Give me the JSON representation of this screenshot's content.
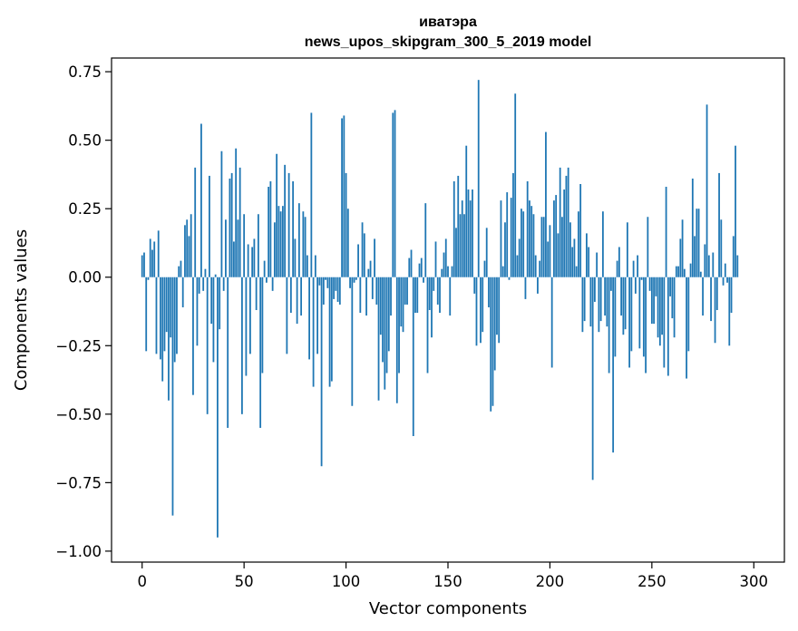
{
  "chart_data": {
    "type": "bar",
    "title": "иватэра",
    "subtitle": "news_upos_skipgram_300_5_2019 model",
    "xlabel": "Vector components",
    "ylabel": "Components values",
    "xlim": [
      -15,
      315
    ],
    "ylim": [
      -1.04,
      0.8
    ],
    "xticks": [
      0,
      50,
      100,
      150,
      200,
      250,
      300
    ],
    "yticks": [
      0.75,
      0.5,
      0.25,
      0.0,
      -0.25,
      -0.5,
      -0.75,
      -1.0
    ],
    "ytick_labels": [
      "0.75",
      "0.50",
      "0.25",
      "0.00",
      "−0.25",
      "−0.50",
      "−0.75",
      "−1.00"
    ],
    "bar_color": "#1f77b4",
    "grid": false,
    "values": [
      0.08,
      0.09,
      -0.27,
      -0.01,
      0.14,
      0.1,
      0.13,
      -0.28,
      0.17,
      -0.3,
      -0.38,
      -0.27,
      -0.2,
      -0.45,
      -0.22,
      -0.87,
      -0.31,
      -0.28,
      0.04,
      0.06,
      -0.11,
      0.19,
      0.21,
      0.15,
      0.23,
      -0.43,
      0.4,
      -0.25,
      -0.06,
      0.56,
      -0.05,
      0.03,
      -0.5,
      0.37,
      -0.17,
      -0.31,
      0.01,
      -0.95,
      -0.19,
      0.46,
      -0.05,
      0.21,
      -0.55,
      0.36,
      0.38,
      0.13,
      0.47,
      0.21,
      0.4,
      -0.5,
      0.23,
      -0.36,
      0.12,
      -0.28,
      0.11,
      0.14,
      -0.12,
      0.23,
      -0.55,
      -0.35,
      0.06,
      -0.02,
      0.33,
      0.35,
      -0.05,
      0.2,
      0.45,
      0.26,
      0.24,
      0.26,
      0.41,
      -0.28,
      0.38,
      -0.13,
      0.35,
      0.14,
      -0.17,
      0.27,
      -0.14,
      0.24,
      0.22,
      0.08,
      -0.3,
      0.6,
      -0.4,
      0.08,
      -0.28,
      -0.03,
      -0.69,
      -0.1,
      -0.01,
      -0.04,
      -0.4,
      -0.38,
      -0.08,
      -0.05,
      -0.09,
      -0.1,
      0.58,
      0.59,
      0.38,
      0.25,
      -0.04,
      -0.47,
      -0.02,
      -0.01,
      0.12,
      -0.13,
      0.2,
      0.16,
      -0.14,
      0.03,
      0.06,
      -0.08,
      0.14,
      -0.1,
      -0.45,
      -0.21,
      -0.31,
      -0.41,
      -0.35,
      -0.27,
      -0.14,
      0.6,
      0.61,
      -0.46,
      -0.35,
      -0.18,
      -0.2,
      -0.1,
      -0.1,
      0.07,
      0.1,
      -0.58,
      -0.13,
      -0.13,
      0.05,
      0.07,
      -0.02,
      0.27,
      -0.35,
      -0.12,
      -0.22,
      -0.05,
      0.13,
      -0.1,
      -0.13,
      0.03,
      0.09,
      0.14,
      0.04,
      -0.14,
      0.04,
      0.35,
      0.18,
      0.37,
      0.23,
      0.28,
      0.23,
      0.48,
      0.32,
      0.28,
      0.32,
      -0.06,
      -0.25,
      0.72,
      -0.24,
      -0.2,
      0.06,
      0.18,
      -0.11,
      -0.49,
      -0.47,
      -0.34,
      -0.21,
      -0.24,
      0.28,
      0.04,
      0.2,
      0.31,
      -0.01,
      0.29,
      0.38,
      0.67,
      0.08,
      0.14,
      0.25,
      0.24,
      -0.08,
      0.35,
      0.28,
      0.26,
      0.23,
      0.08,
      -0.06,
      0.06,
      0.22,
      0.22,
      0.53,
      0.13,
      0.19,
      -0.33,
      0.28,
      0.3,
      0.16,
      0.4,
      0.22,
      0.32,
      0.37,
      0.4,
      0.2,
      0.11,
      0.14,
      0.04,
      0.24,
      0.34,
      -0.2,
      -0.16,
      0.16,
      0.11,
      -0.18,
      -0.74,
      -0.09,
      0.09,
      -0.2,
      -0.16,
      0.24,
      -0.14,
      -0.18,
      -0.35,
      -0.05,
      -0.64,
      -0.29,
      0.06,
      0.11,
      -0.14,
      -0.21,
      -0.19,
      0.2,
      -0.33,
      -0.27,
      0.06,
      -0.06,
      0.08,
      -0.26,
      -0.01,
      -0.29,
      -0.35,
      0.22,
      -0.05,
      -0.17,
      -0.17,
      -0.07,
      -0.22,
      -0.25,
      -0.21,
      -0.33,
      0.33,
      -0.36,
      -0.07,
      -0.15,
      -0.22,
      0.04,
      0.04,
      0.14,
      0.21,
      0.03,
      -0.37,
      -0.27,
      0.05,
      0.36,
      0.15,
      0.25,
      0.25,
      0.02,
      -0.14,
      0.12,
      0.63,
      0.08,
      -0.16,
      0.09,
      -0.24,
      -0.12,
      0.38,
      0.21,
      -0.03,
      0.05,
      -0.02,
      -0.25,
      -0.13,
      0.15,
      0.48,
      0.08
    ]
  }
}
